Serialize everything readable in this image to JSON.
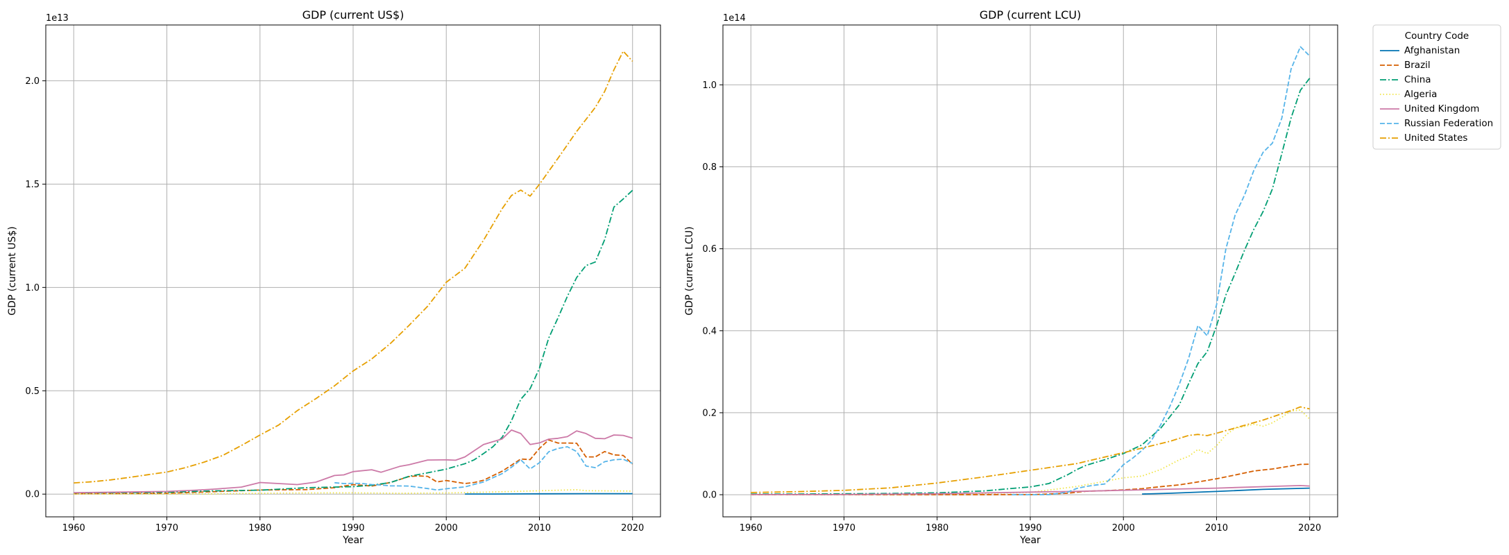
{
  "legend": {
    "title": "Country Code",
    "placement": "upper-left-outside-right"
  },
  "series_styles": [
    {
      "name": "Afghanistan",
      "color": "#0072b2",
      "dash": "solid"
    },
    {
      "name": "Brazil",
      "color": "#d55e00",
      "dash": "dashed"
    },
    {
      "name": "China",
      "color": "#009e73",
      "dash": "dashdot"
    },
    {
      "name": "Algeria",
      "color": "#f0e442",
      "dash": "dotted"
    },
    {
      "name": "United Kingdom",
      "color": "#cc79a7",
      "dash": "solid"
    },
    {
      "name": "Russian Federation",
      "color": "#56b4e9",
      "dash": "dashed"
    },
    {
      "name": "United States",
      "color": "#e69f00",
      "dash": "dashdot"
    }
  ],
  "chart_data": [
    {
      "type": "line",
      "title": "GDP (current US$)",
      "xlabel": "Year",
      "ylabel": "GDP (current US$)",
      "scale_label": "1e13",
      "scale": 10000000000000.0,
      "xlim": [
        1957,
        2023
      ],
      "ylim": [
        -0.11,
        2.27
      ],
      "xticks": [
        1960,
        1970,
        1980,
        1990,
        2000,
        2010,
        2020
      ],
      "yticks": [
        0.0,
        0.5,
        1.0,
        1.5,
        2.0
      ],
      "ytick_labels": [
        "0.0",
        "0.5",
        "1.0",
        "1.5",
        "2.0"
      ],
      "grid": true,
      "series": [
        {
          "name": "Afghanistan",
          "x": [
            2002,
            2005,
            2010,
            2015,
            2020
          ],
          "y": [
            0.0004,
            0.0006,
            0.0016,
            0.002,
            0.002
          ]
        },
        {
          "name": "Brazil",
          "x": [
            1960,
            1965,
            1970,
            1975,
            1980,
            1985,
            1988,
            1990,
            1992,
            1994,
            1996,
            1997,
            1998,
            1999,
            2000,
            2002,
            2003,
            2004,
            2005,
            2006,
            2007,
            2008,
            2009,
            2010,
            2011,
            2012,
            2013,
            2014,
            2015,
            2016,
            2017,
            2018,
            2019,
            2020
          ],
          "y": [
            0.002,
            0.003,
            0.004,
            0.012,
            0.02,
            0.022,
            0.031,
            0.046,
            0.039,
            0.056,
            0.085,
            0.088,
            0.086,
            0.059,
            0.066,
            0.051,
            0.056,
            0.067,
            0.089,
            0.111,
            0.14,
            0.17,
            0.167,
            0.221,
            0.262,
            0.247,
            0.247,
            0.246,
            0.18,
            0.18,
            0.206,
            0.19,
            0.187,
            0.145
          ]
        },
        {
          "name": "China",
          "x": [
            1960,
            1965,
            1970,
            1975,
            1980,
            1985,
            1990,
            1992,
            1994,
            1996,
            1998,
            2000,
            2002,
            2003,
            2004,
            2005,
            2006,
            2007,
            2008,
            2009,
            2010,
            2011,
            2012,
            2013,
            2014,
            2015,
            2016,
            2017,
            2018,
            2019,
            2020
          ],
          "y": [
            0.006,
            0.007,
            0.009,
            0.016,
            0.019,
            0.031,
            0.036,
            0.043,
            0.056,
            0.086,
            0.103,
            0.121,
            0.147,
            0.166,
            0.196,
            0.229,
            0.275,
            0.355,
            0.459,
            0.51,
            0.609,
            0.755,
            0.853,
            0.957,
            1.048,
            1.106,
            1.123,
            1.231,
            1.389,
            1.428,
            1.47
          ]
        },
        {
          "name": "Algeria",
          "x": [
            1960,
            1965,
            1970,
            1975,
            1980,
            1985,
            1990,
            1995,
            2000,
            2005,
            2010,
            2014,
            2015,
            2020
          ],
          "y": [
            0.0003,
            0.0003,
            0.0005,
            0.0016,
            0.0042,
            0.0057,
            0.0062,
            0.0041,
            0.0055,
            0.0103,
            0.0161,
            0.0214,
            0.0167,
            0.0145
          ]
        },
        {
          "name": "United Kingdom",
          "x": [
            1960,
            1965,
            1970,
            1973,
            1975,
            1978,
            1980,
            1982,
            1984,
            1986,
            1988,
            1989,
            1990,
            1992,
            1993,
            1995,
            1996,
            1998,
            2000,
            2001,
            2002,
            2004,
            2006,
            2007,
            2008,
            2009,
            2010,
            2011,
            2012,
            2013,
            2014,
            2015,
            2016,
            2017,
            2018,
            2019,
            2020
          ],
          "y": [
            0.007,
            0.01,
            0.013,
            0.019,
            0.024,
            0.034,
            0.056,
            0.051,
            0.046,
            0.058,
            0.09,
            0.093,
            0.109,
            0.118,
            0.106,
            0.134,
            0.142,
            0.165,
            0.166,
            0.164,
            0.18,
            0.24,
            0.267,
            0.31,
            0.293,
            0.24,
            0.248,
            0.266,
            0.27,
            0.278,
            0.306,
            0.293,
            0.27,
            0.268,
            0.286,
            0.284,
            0.271
          ]
        },
        {
          "name": "Russian Federation",
          "x": [
            1988,
            1989,
            1990,
            1991,
            1992,
            1993,
            1994,
            1996,
            1998,
            1999,
            2000,
            2002,
            2004,
            2006,
            2007,
            2008,
            2009,
            2010,
            2011,
            2012,
            2013,
            2014,
            2015,
            2016,
            2017,
            2018,
            2019,
            2020
          ],
          "y": [
            0.055,
            0.051,
            0.052,
            0.051,
            0.046,
            0.044,
            0.04,
            0.039,
            0.027,
            0.02,
            0.026,
            0.035,
            0.059,
            0.099,
            0.13,
            0.166,
            0.122,
            0.152,
            0.205,
            0.221,
            0.229,
            0.206,
            0.136,
            0.128,
            0.157,
            0.166,
            0.169,
            0.148
          ]
        },
        {
          "name": "United States",
          "x": [
            1960,
            1962,
            1964,
            1966,
            1968,
            1970,
            1972,
            1974,
            1976,
            1978,
            1980,
            1982,
            1984,
            1986,
            1988,
            1990,
            1992,
            1994,
            1996,
            1998,
            2000,
            2002,
            2004,
            2006,
            2007,
            2008,
            2009,
            2010,
            2012,
            2014,
            2016,
            2017,
            2018,
            2019,
            2020
          ],
          "y": [
            0.054,
            0.06,
            0.069,
            0.081,
            0.094,
            0.107,
            0.128,
            0.155,
            0.187,
            0.235,
            0.286,
            0.334,
            0.404,
            0.462,
            0.524,
            0.596,
            0.654,
            0.729,
            0.816,
            0.909,
            1.025,
            1.093,
            1.228,
            1.381,
            1.445,
            1.471,
            1.442,
            1.499,
            1.625,
            1.755,
            1.871,
            1.948,
            2.053,
            2.143,
            2.094
          ]
        }
      ]
    },
    {
      "type": "line",
      "title": "GDP (current LCU)",
      "xlabel": "Year",
      "ylabel": "GDP (current LCU)",
      "scale_label": "1e14",
      "scale": 100000000000000.0,
      "xlim": [
        1957,
        2023
      ],
      "ylim": [
        -0.054,
        1.146
      ],
      "xticks": [
        1960,
        1970,
        1980,
        1990,
        2000,
        2010,
        2020
      ],
      "yticks": [
        0.0,
        0.2,
        0.4,
        0.6,
        0.8,
        1.0
      ],
      "ytick_labels": [
        "0.0",
        "0.2",
        "0.4",
        "0.6",
        "0.8",
        "1.0"
      ],
      "grid": true,
      "series": [
        {
          "name": "Afghanistan",
          "x": [
            2002,
            2005,
            2010,
            2015,
            2020
          ],
          "y": [
            0.0017,
            0.0035,
            0.008,
            0.013,
            0.016
          ]
        },
        {
          "name": "Brazil",
          "x": [
            1960,
            1970,
            1980,
            1990,
            1994,
            1996,
            1998,
            2000,
            2002,
            2004,
            2006,
            2008,
            2010,
            2012,
            2014,
            2016,
            2018,
            2019,
            2020
          ],
          "y": [
            0.0,
            0.0,
            0.0,
            0.0001,
            0.0035,
            0.0085,
            0.0098,
            0.0118,
            0.0148,
            0.0196,
            0.0241,
            0.0311,
            0.0389,
            0.0481,
            0.0578,
            0.0627,
            0.0703,
            0.0739,
            0.0745
          ]
        },
        {
          "name": "China",
          "x": [
            1960,
            1965,
            1970,
            1975,
            1980,
            1985,
            1988,
            1990,
            1992,
            1994,
            1995,
            1996,
            1998,
            2000,
            2002,
            2004,
            2006,
            2007,
            2008,
            2009,
            2010,
            2011,
            2012,
            2013,
            2014,
            2015,
            2016,
            2017,
            2018,
            2019,
            2020
          ],
          "y": [
            0.0015,
            0.0017,
            0.0023,
            0.003,
            0.0046,
            0.0091,
            0.0152,
            0.0189,
            0.0272,
            0.0486,
            0.0613,
            0.0718,
            0.0854,
            0.1003,
            0.1217,
            0.1619,
            0.2193,
            0.2708,
            0.3198,
            0.3491,
            0.4123,
            0.4871,
            0.5404,
            0.5966,
            0.6474,
            0.6911,
            0.746,
            0.832,
            0.9192,
            0.9865,
            1.016
          ]
        },
        {
          "name": "Algeria",
          "x": [
            1960,
            1970,
            1980,
            1985,
            1990,
            1995,
            2000,
            2002,
            2004,
            2006,
            2007,
            2008,
            2009,
            2010,
            2011,
            2012,
            2013,
            2014,
            2015,
            2016,
            2017,
            2018,
            2019,
            2020
          ],
          "y": [
            0.0,
            0.0,
            0.002,
            0.003,
            0.0055,
            0.0201,
            0.0412,
            0.0455,
            0.0615,
            0.0852,
            0.0935,
            0.1104,
            0.1003,
            0.1199,
            0.1459,
            0.1621,
            0.1665,
            0.1721,
            0.1671,
            0.1755,
            0.1889,
            0.2043,
            0.2066,
            0.1847
          ]
        },
        {
          "name": "United Kingdom",
          "x": [
            1960,
            1970,
            1980,
            1990,
            1995,
            2000,
            2005,
            2010,
            2015,
            2019,
            2020
          ],
          "y": [
            0.0003,
            0.0005,
            0.0023,
            0.0064,
            0.0082,
            0.0109,
            0.0135,
            0.0161,
            0.0196,
            0.0223,
            0.0211
          ]
        },
        {
          "name": "Russian Federation",
          "x": [
            1988,
            1990,
            1992,
            1994,
            1995,
            1996,
            1997,
            1998,
            1999,
            2000,
            2001,
            2002,
            2003,
            2004,
            2005,
            2006,
            2007,
            2008,
            2009,
            2010,
            2011,
            2012,
            2013,
            2014,
            2015,
            2016,
            2017,
            2018,
            2019,
            2020
          ],
          "y": [
            0.0,
            0.0,
            0.0002,
            0.0061,
            0.0154,
            0.0201,
            0.0235,
            0.0263,
            0.0478,
            0.0731,
            0.0894,
            0.1083,
            0.132,
            0.1703,
            0.2162,
            0.2692,
            0.3325,
            0.4128,
            0.3876,
            0.4632,
            0.5996,
            0.6825,
            0.731,
            0.7911,
            0.8355,
            0.8577,
            0.9186,
            1.0386,
            1.0928,
            1.0703
          ]
        },
        {
          "name": "United States",
          "x": [
            1960,
            1965,
            1970,
            1975,
            1980,
            1985,
            1990,
            1995,
            2000,
            2005,
            2007,
            2008,
            2009,
            2010,
            2015,
            2018,
            2019,
            2020
          ],
          "y": [
            0.0054,
            0.0074,
            0.0107,
            0.0168,
            0.0286,
            0.0434,
            0.0596,
            0.076,
            0.1025,
            0.1304,
            0.1445,
            0.1471,
            0.1442,
            0.1499,
            0.1821,
            0.2053,
            0.2143,
            0.2094
          ]
        }
      ]
    }
  ]
}
